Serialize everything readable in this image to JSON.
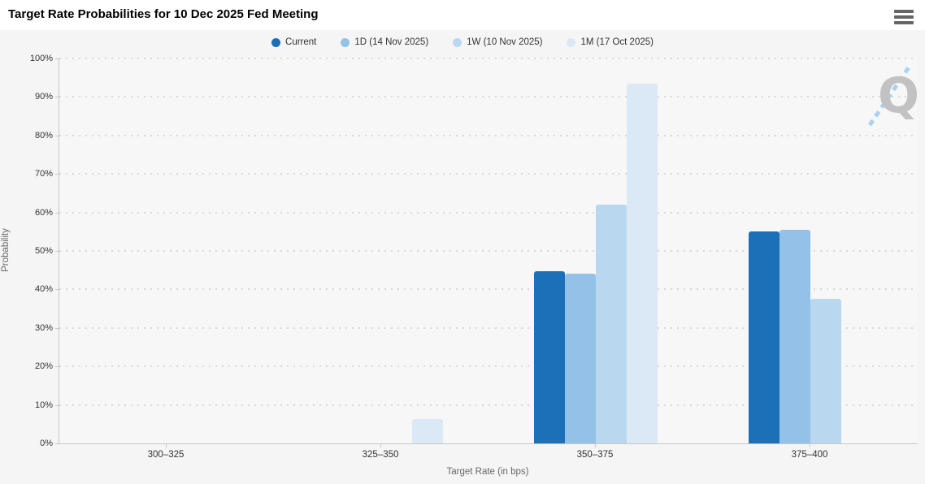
{
  "header": {
    "title": "Target Rate Probabilities for 10 Dec 2025 Fed Meeting"
  },
  "menu": {
    "icon": "hamburger-icon"
  },
  "watermark": {
    "letter": "Q"
  },
  "chart_data": {
    "type": "bar",
    "title": "Target Rate Probabilities for 10 Dec 2025 Fed Meeting",
    "categories": [
      "300–325",
      "325–350",
      "350–375",
      "375–400"
    ],
    "series": [
      {
        "name": "Current",
        "color": "#1c70b8",
        "values": [
          0,
          0,
          44.7,
          55.1
        ]
      },
      {
        "name": "1D (14 Nov 2025)",
        "color": "#94c1e8",
        "values": [
          0,
          0,
          44.0,
          55.5
        ]
      },
      {
        "name": "1W (10 Nov 2025)",
        "color": "#b9d7ef",
        "values": [
          0,
          0,
          62.0,
          37.6
        ]
      },
      {
        "name": "1M (17 Oct 2025)",
        "color": "#dbe9f7",
        "values": [
          0,
          6.3,
          93.4,
          0
        ]
      }
    ],
    "xlabel": "Target Rate (in bps)",
    "ylabel": "Probability",
    "ylim": [
      0,
      100
    ],
    "ytick_step": 10,
    "ytick_labels": [
      "0%",
      "10%",
      "20%",
      "30%",
      "40%",
      "50%",
      "60%",
      "70%",
      "80%",
      "90%",
      "100%"
    ],
    "grid": "dotted-horizontal",
    "legend_position": "top-center"
  },
  "colors": {
    "outer_background": "#f5f5f5",
    "header_background": "#ffffff",
    "plot_background": "#f7f7f7",
    "gridline": "#d8d8d8",
    "axis_line": "#c8c8c8",
    "axis_text": "#333333",
    "axis_title_text": "#666666",
    "watermark_gray": "#c2c2c2",
    "watermark_blue": "#a6d3f3"
  }
}
